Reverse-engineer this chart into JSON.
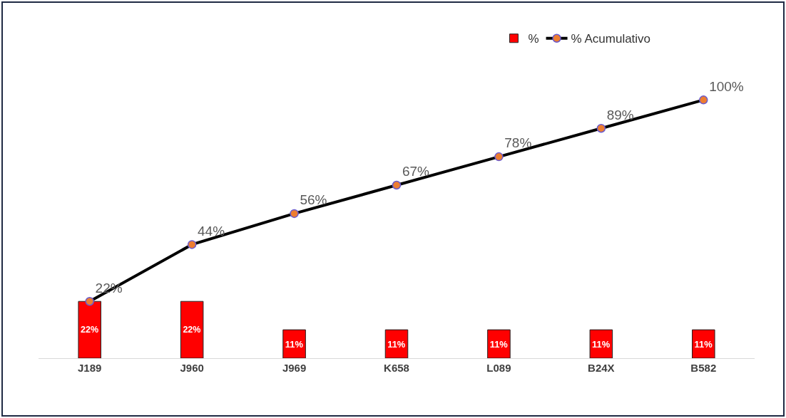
{
  "chart_data": {
    "type": "bar",
    "categories": [
      "J189",
      "J960",
      "J969",
      "K658",
      "L089",
      "B24X",
      "B582"
    ],
    "series": [
      {
        "name": "%",
        "color": "#ff0000",
        "values": [
          22,
          22,
          11,
          11,
          11,
          11,
          11
        ],
        "value_labels": [
          "22%",
          "22%",
          "11%",
          "11%",
          "11%",
          "11%",
          "11%"
        ]
      },
      {
        "name": "% Acumulativo",
        "type": "line",
        "color": "#000000",
        "values": [
          22,
          44,
          56,
          67,
          78,
          89,
          100
        ],
        "value_labels": [
          "22%",
          "44%",
          "56%",
          "67%",
          "78%",
          "89%",
          "100%"
        ]
      }
    ],
    "tick_labels": "x",
    "legend": "top right",
    "marker": "circle",
    "line_style": "solid"
  }
}
